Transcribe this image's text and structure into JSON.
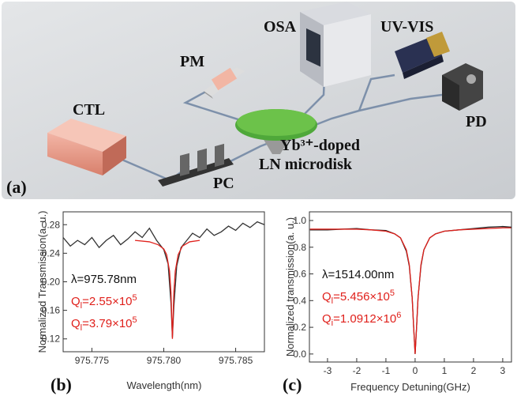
{
  "setup": {
    "panel_label": "(a)",
    "labels": {
      "ctl": "CTL",
      "pm": "PM",
      "osa": "OSA",
      "uvvis": "UV-VIS",
      "pd": "PD",
      "pc": "PC",
      "disk_line1": "Yb³⁺-doped",
      "disk_line2": "LN microdisk"
    }
  },
  "chart_data": [
    {
      "type": "line",
      "panel_label": "(b)",
      "x_label": "Wavelength(nm)",
      "y_label": "Normalized Transmission(a. u.)",
      "xlim": [
        975.773,
        975.787
      ],
      "ylim": [
        0.102,
        0.298
      ],
      "xticks": [
        975.775,
        {
          "value": 975.78,
          "label": "975.780"
        },
        975.785
      ],
      "yticks": [
        0.12,
        0.16,
        {
          "value": 0.2,
          "label": "0.20"
        },
        0.24,
        0.28
      ],
      "series": [
        {
          "color": "#333333",
          "x": [
            975.773,
            975.7735,
            975.774,
            975.7745,
            975.775,
            975.7755,
            975.776,
            975.7765,
            975.777,
            975.7775,
            975.778,
            975.7785,
            975.779,
            975.7795,
            975.78,
            975.7803,
            975.7805,
            975.7806,
            975.7807,
            975.7809,
            975.7812,
            975.7816,
            975.782,
            975.7825,
            975.783,
            975.7835,
            975.784,
            975.7845,
            975.785,
            975.7855,
            975.786,
            975.7865,
            975.787
          ],
          "values": [
            0.262,
            0.25,
            0.258,
            0.252,
            0.262,
            0.248,
            0.258,
            0.265,
            0.252,
            0.26,
            0.27,
            0.262,
            0.275,
            0.258,
            0.245,
            0.225,
            0.17,
            0.122,
            0.165,
            0.222,
            0.248,
            0.258,
            0.268,
            0.262,
            0.274,
            0.265,
            0.27,
            0.278,
            0.272,
            0.282,
            0.276,
            0.284,
            0.28
          ]
        },
        {
          "color": "#e0201b",
          "x": [
            975.778,
            975.779,
            975.7796,
            975.78,
            975.7802,
            975.7804,
            975.7805,
            975.7806,
            975.7807,
            975.7808,
            975.781,
            975.7813,
            975.7818,
            975.7825
          ],
          "values": [
            0.258,
            0.256,
            0.252,
            0.246,
            0.238,
            0.215,
            0.185,
            0.12,
            0.185,
            0.215,
            0.238,
            0.25,
            0.256,
            0.258
          ]
        }
      ],
      "annotations": [
        {
          "color": "#111111",
          "text": "λ=975.78nm"
        },
        {
          "color": "#e0201b",
          "q": "Q",
          "sub": "l",
          "text": "=2.55×10",
          "sup": "5"
        },
        {
          "color": "#e0201b",
          "q": "Q",
          "sub": "l",
          "text": "=3.79×10",
          "sup": "5"
        }
      ]
    },
    {
      "type": "line",
      "panel_label": "(c)",
      "x_label": "Frequency Detuning(GHz)",
      "y_label": "Normalized transmission(a. u.)",
      "xlim": [
        -3.62,
        3.3
      ],
      "ylim": [
        -0.06,
        1.065
      ],
      "xticks": [
        -3,
        -2,
        -1,
        0,
        1,
        2,
        3
      ],
      "yticks": [
        {
          "value": 0,
          "label": "0.0"
        },
        0.2,
        0.4,
        0.6,
        0.8,
        {
          "value": 1,
          "label": "1.0"
        }
      ],
      "series": [
        {
          "color": "#222222",
          "x": [
            -3.6,
            -3,
            -2.5,
            -2,
            -1.5,
            -1,
            -0.7,
            -0.5,
            -0.3,
            -0.2,
            -0.1,
            -0.05,
            0,
            0.05,
            0.1,
            0.2,
            0.3,
            0.5,
            0.7,
            1,
            1.5,
            2,
            2.5,
            3,
            3.3
          ],
          "values": [
            0.93,
            0.93,
            0.935,
            0.94,
            0.93,
            0.925,
            0.9,
            0.87,
            0.77,
            0.66,
            0.42,
            0.2,
            0,
            0.2,
            0.42,
            0.66,
            0.78,
            0.87,
            0.9,
            0.92,
            0.93,
            0.94,
            0.95,
            0.955,
            0.95
          ]
        },
        {
          "color": "#e0201b",
          "x": [
            -3.6,
            -3,
            -2.5,
            -2,
            -1.5,
            -1,
            -0.7,
            -0.5,
            -0.3,
            -0.2,
            -0.1,
            -0.05,
            0,
            0.05,
            0.1,
            0.2,
            0.3,
            0.5,
            0.7,
            1,
            1.5,
            2,
            2.5,
            3,
            3.3
          ],
          "values": [
            0.935,
            0.935,
            0.935,
            0.935,
            0.93,
            0.92,
            0.9,
            0.87,
            0.78,
            0.67,
            0.42,
            0.2,
            0,
            0.2,
            0.42,
            0.67,
            0.78,
            0.87,
            0.9,
            0.92,
            0.93,
            0.935,
            0.94,
            0.945,
            0.945
          ]
        }
      ],
      "annotations": [
        {
          "color": "#111111",
          "text": "λ=1514.00nm"
        },
        {
          "color": "#e0201b",
          "q": "Q",
          "sub": "l",
          "text": "=5.456×10",
          "sup": "5"
        },
        {
          "color": "#e0201b",
          "q": "Q",
          "sub": "i",
          "text": "=1.0912×10",
          "sup": "6"
        }
      ]
    }
  ]
}
